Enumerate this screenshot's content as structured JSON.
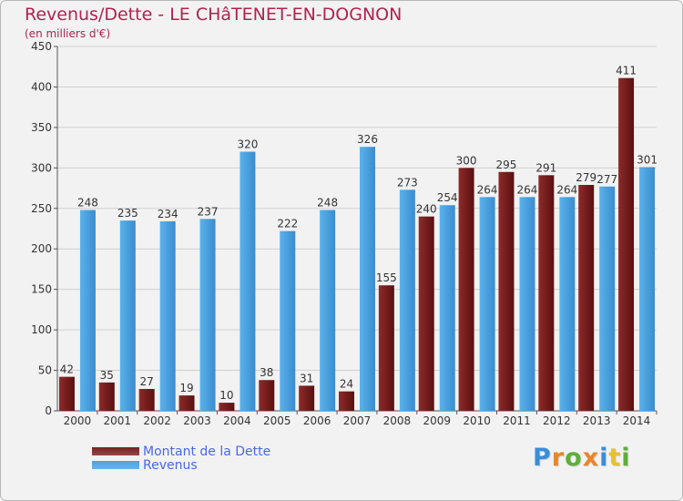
{
  "title": "Revenus/Dette - LE CHâTENET-EN-DOGNON",
  "subtitle": "(en milliers d'€)",
  "colors": {
    "dette": "#7a1f1f",
    "revenus": "#4aa3e0",
    "title": "#b2224e",
    "legend_text": "#4a68e8",
    "grid": "#d0d0d0"
  },
  "legend": [
    {
      "label": "Montant de la Dette",
      "color": "#7a1f1f"
    },
    {
      "label": "Revenus",
      "color": "#4aa3e0"
    }
  ],
  "logo": "Proxiti",
  "chart_data": {
    "type": "bar",
    "title": "Revenus/Dette - LE CHâTENET-EN-DOGNON",
    "subtitle": "(en milliers d'€)",
    "xlabel": "",
    "ylabel": "",
    "ylim": [
      0,
      450
    ],
    "yticks": [
      0,
      50,
      100,
      150,
      200,
      250,
      300,
      350,
      400,
      450
    ],
    "grid": true,
    "legend_position": "bottom-left",
    "categories": [
      "2000",
      "2001",
      "2002",
      "2003",
      "2004",
      "2005",
      "2006",
      "2007",
      "2008",
      "2009",
      "2010",
      "2011",
      "2012",
      "2013",
      "2014"
    ],
    "series": [
      {
        "name": "Montant de la Dette",
        "color": "#7a1f1f",
        "values": [
          42,
          35,
          27,
          19,
          10,
          38,
          31,
          24,
          155,
          240,
          300,
          295,
          291,
          279,
          411
        ]
      },
      {
        "name": "Revenus",
        "color": "#4aa3e0",
        "values": [
          248,
          235,
          234,
          237,
          320,
          222,
          248,
          326,
          273,
          254,
          264,
          264,
          264,
          277,
          301
        ]
      }
    ]
  }
}
